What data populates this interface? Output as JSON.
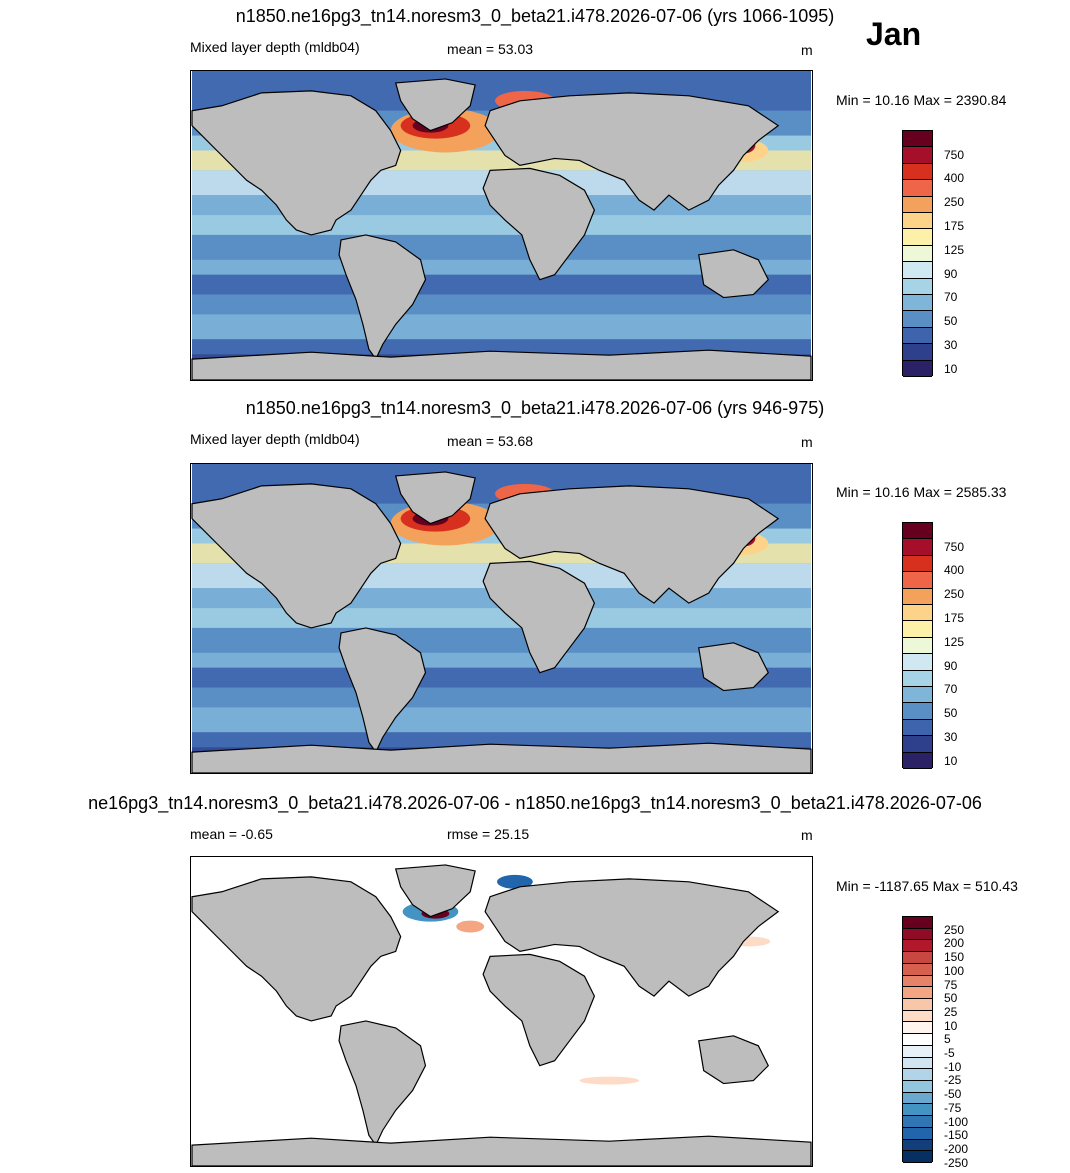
{
  "month": "Jan",
  "panels": [
    {
      "title": "n1850.ne16pg3_tn14.noresm3_0_beta21.i478.2026-07-06 (yrs 1066-1095)",
      "left_label": "Mixed layer depth (mldb04)",
      "center_label": "mean =  53.03",
      "units": "m",
      "minmax": "Min =  10.16 Max = 2390.84",
      "kind": "field",
      "colorbar": {
        "labels": [
          "750",
          "400",
          "250",
          "175",
          "125",
          "90",
          "70",
          "50",
          "30",
          "10"
        ],
        "colors": [
          "#67001f",
          "#a50f2a",
          "#d7301f",
          "#ef6548",
          "#f4a25b",
          "#fdd38a",
          "#fdf0a8",
          "#edf8d8",
          "#cfe8f2",
          "#a6d3e6",
          "#7fb5d8",
          "#5a8fc5",
          "#3e64ad",
          "#2e3f8c",
          "#2b2166"
        ]
      }
    },
    {
      "title": "n1850.ne16pg3_tn14.noresm3_0_beta21.i478.2026-07-06 (yrs 946-975)",
      "left_label": "Mixed layer depth (mldb04)",
      "center_label": "mean =  53.68",
      "units": "m",
      "minmax": "Min =  10.16 Max = 2585.33",
      "kind": "field",
      "colorbar": {
        "labels": [
          "750",
          "400",
          "250",
          "175",
          "125",
          "90",
          "70",
          "50",
          "30",
          "10"
        ],
        "colors": [
          "#67001f",
          "#a50f2a",
          "#d7301f",
          "#ef6548",
          "#f4a25b",
          "#fdd38a",
          "#fdf0a8",
          "#edf8d8",
          "#cfe8f2",
          "#a6d3e6",
          "#7fb5d8",
          "#5a8fc5",
          "#3e64ad",
          "#2e3f8c",
          "#2b2166"
        ]
      }
    },
    {
      "title": "ne16pg3_tn14.noresm3_0_beta21.i478.2026-07-06 - n1850.ne16pg3_tn14.noresm3_0_beta21.i478.2026-07-06",
      "left_label": "mean =  -0.65",
      "center_label": "rmse =  25.15",
      "units": "m",
      "minmax": "Min = -1187.65 Max = 510.43",
      "kind": "diff",
      "colorbar": {
        "labels": [
          "250",
          "200",
          "150",
          "100",
          "75",
          "50",
          "25",
          "10",
          "5",
          "-5",
          "-10",
          "-25",
          "-50",
          "-75",
          "-100",
          "-150",
          "-200",
          "-250"
        ],
        "colors": [
          "#67001f",
          "#8e0c25",
          "#b2182b",
          "#c94741",
          "#d6604d",
          "#e58268",
          "#f4a582",
          "#f8c7aa",
          "#fddbc7",
          "#fff5ee",
          "#ffffff",
          "#e8f1f8",
          "#d1e5f0",
          "#b2d4e8",
          "#92c5de",
          "#6aa8cf",
          "#4393c3",
          "#3176b4",
          "#2166ac",
          "#123f7a",
          "#053061"
        ]
      }
    }
  ]
}
